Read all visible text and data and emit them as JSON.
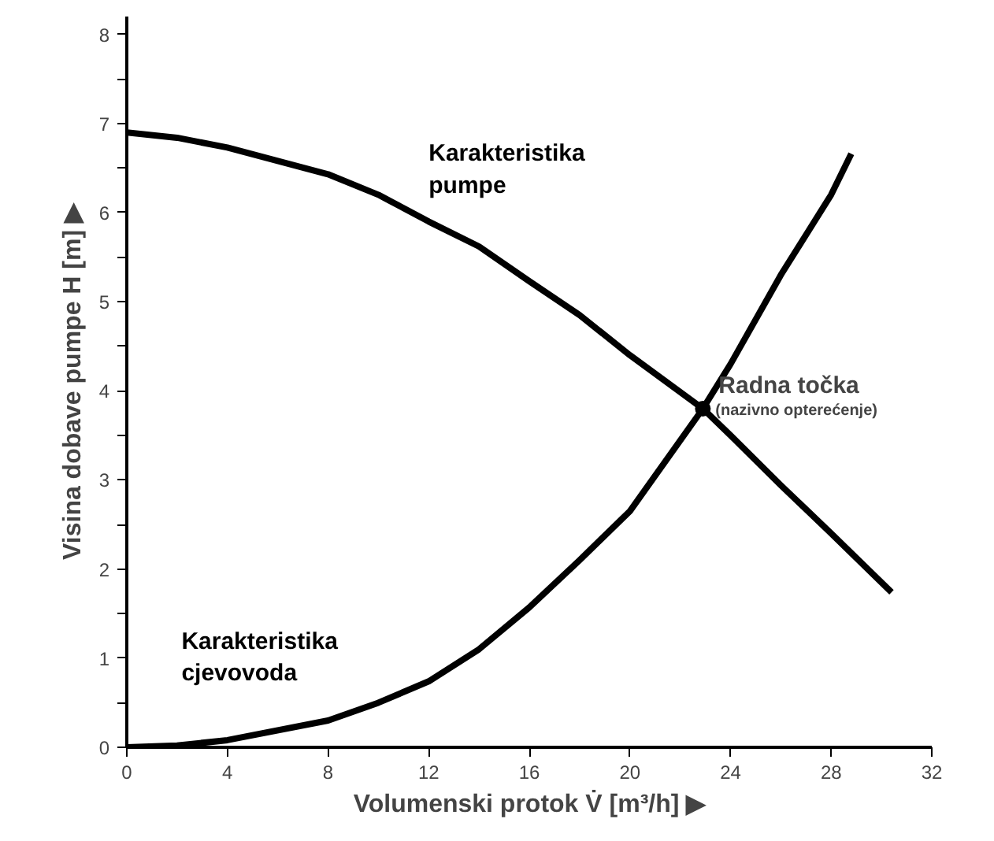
{
  "chart_data": {
    "type": "line",
    "xlabel": "Volumenski protok V̇ [m³/h] ▶",
    "ylabel": "Visina dobave pumpe H [m] ▶",
    "series": [
      {
        "name": "Karakteristika pumpe",
        "color": "#000000",
        "x": [
          0,
          2,
          4,
          8,
          10,
          12,
          14,
          16,
          18,
          20,
          22.9,
          24,
          26,
          28,
          30.4
        ],
        "values": [
          6.9,
          6.84,
          6.73,
          6.43,
          6.2,
          5.9,
          5.62,
          5.23,
          4.85,
          4.4,
          3.8,
          3.5,
          2.94,
          2.4,
          1.74
        ]
      },
      {
        "name": "Karakteristika cjevovoda",
        "color": "#000000",
        "x": [
          0,
          2,
          4,
          8,
          10,
          12,
          14,
          16,
          18,
          20,
          22.9,
          24,
          26,
          28,
          28.8
        ],
        "values": [
          0,
          0.02,
          0.08,
          0.3,
          0.5,
          0.74,
          1.1,
          1.57,
          2.1,
          2.65,
          3.8,
          4.3,
          5.3,
          6.2,
          6.66
        ]
      }
    ],
    "annotations": [
      {
        "text": "Radna točka",
        "x": 22.9,
        "y": 3.8
      },
      "(nazivno opterećenje)"
    ],
    "xlim": [
      0,
      32
    ],
    "ylim": [
      0,
      8.2
    ],
    "xticks": [
      0,
      4,
      8,
      12,
      16,
      20,
      24,
      28,
      32
    ],
    "yticks": [
      0,
      {
        "value": 0.5,
        "label": null
      },
      1,
      {
        "value": 1.5,
        "label": null
      },
      2,
      {
        "value": 2.5,
        "label": null
      },
      3,
      {
        "value": 3.5,
        "label": null
      },
      4,
      {
        "value": 4.5,
        "label": null
      },
      5,
      {
        "value": 5.5,
        "label": null
      },
      6,
      {
        "value": 6.5,
        "label": null
      },
      7,
      {
        "value": 7.5,
        "label": null
      },
      8
    ],
    "grid": false,
    "marker": "none",
    "line_style": "solid"
  }
}
